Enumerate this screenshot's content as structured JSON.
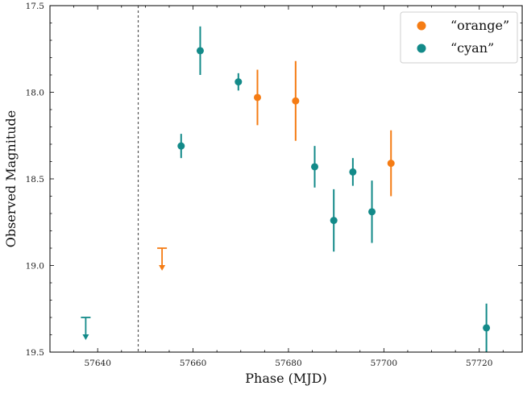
{
  "chart_data": {
    "type": "scatter",
    "title": "",
    "xlabel": "Phase (MJD)",
    "ylabel": "Observed Magnitude",
    "xlim": [
      57630,
      57729
    ],
    "ylim": [
      17.5,
      19.5
    ],
    "y_inverted": true,
    "x_ticks": [
      57640,
      57660,
      57680,
      57700,
      57720
    ],
    "x_tick_labels": [
      "57640",
      "57660",
      "57680",
      "57700",
      "57720"
    ],
    "y_ticks": [
      17.5,
      18.0,
      18.5,
      19.0,
      19.5
    ],
    "y_tick_labels": [
      "17.5",
      "18.0",
      "18.5",
      "19.0",
      "19.5"
    ],
    "grid": false,
    "legend_position": "top-right",
    "vline": {
      "x": 57648.5,
      "style": "dashed",
      "color": "#555555"
    },
    "series": [
      {
        "name": "“orange”",
        "color": "#f57c14",
        "points": [
          {
            "x": 57673.5,
            "y": 18.03,
            "err": 0.16
          },
          {
            "x": 57681.5,
            "y": 18.05,
            "err": 0.23
          },
          {
            "x": 57701.5,
            "y": 18.41,
            "err": 0.19
          }
        ],
        "upper_limits": [
          {
            "x": 57653.5,
            "y": 18.9
          }
        ]
      },
      {
        "name": "“cyan”",
        "color": "#138a89",
        "points": [
          {
            "x": 57657.5,
            "y": 18.31,
            "err": 0.07
          },
          {
            "x": 57661.5,
            "y": 17.76,
            "err": 0.14
          },
          {
            "x": 57669.5,
            "y": 17.94,
            "err": 0.05
          },
          {
            "x": 57685.5,
            "y": 18.43,
            "err": 0.12
          },
          {
            "x": 57689.5,
            "y": 18.74,
            "err": 0.18
          },
          {
            "x": 57693.5,
            "y": 18.46,
            "err": 0.08
          },
          {
            "x": 57697.5,
            "y": 18.69,
            "err": 0.18
          },
          {
            "x": 57721.5,
            "y": 19.36,
            "err": 0.14
          }
        ],
        "upper_limits": [
          {
            "x": 57637.5,
            "y": 19.3
          }
        ]
      }
    ]
  }
}
